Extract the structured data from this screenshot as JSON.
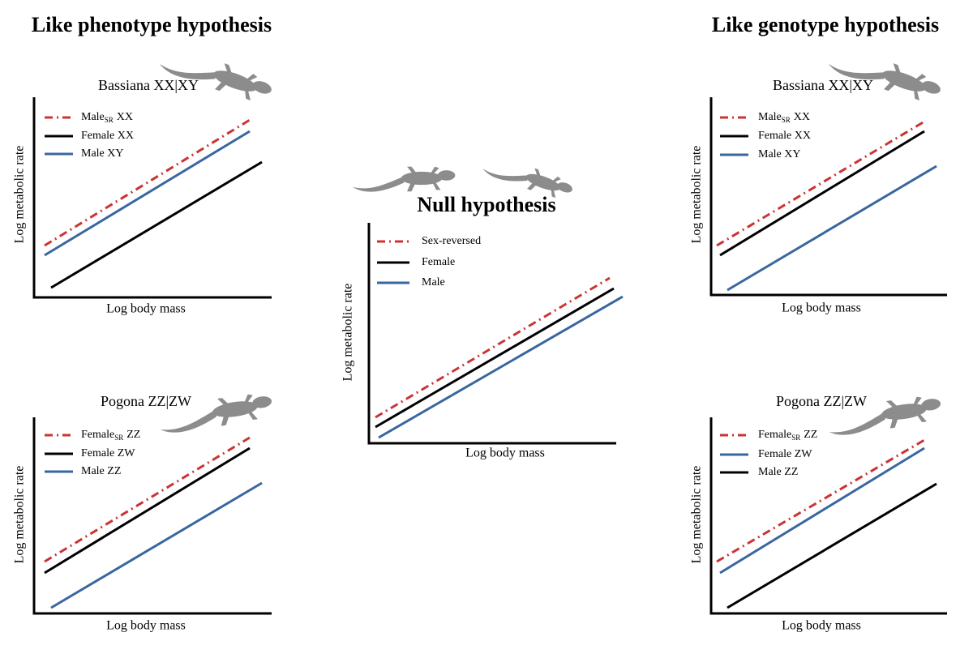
{
  "headings": {
    "left": "Like phenotype hypothesis",
    "right": "Like genotype hypothesis"
  },
  "panels": [
    {
      "title": "Bassiana XX|XY",
      "x_label": "Log body mass",
      "y_label": "Log metabolic rate",
      "legend": [
        {
          "text": "Male",
          "sub": "SR",
          "after": "XX"
        },
        {
          "text": "Female XX"
        },
        {
          "text": "Male XY"
        }
      ]
    },
    {
      "title": "Pogona ZZ|ZW",
      "x_label": "Log body mass",
      "y_label": "Log metabolic rate",
      "legend": [
        {
          "text": "Female",
          "sub": "SR",
          "after": "ZZ"
        },
        {
          "text": "Female ZW"
        },
        {
          "text": "Male ZZ"
        }
      ]
    },
    {
      "title": "Null hypothesis",
      "x_label": "Log body mass",
      "y_label": "Log metabolic rate",
      "legend": [
        {
          "text": "Sex-reversed"
        },
        {
          "text": "Female"
        },
        {
          "text": "Male"
        }
      ]
    },
    {
      "title": "Bassiana XX|XY",
      "x_label": "Log body mass",
      "y_label": "Log metabolic rate",
      "legend": [
        {
          "text": "Male",
          "sub": "SR",
          "after": "XX"
        },
        {
          "text": "Female XX"
        },
        {
          "text": "Male XY"
        }
      ]
    },
    {
      "title": "Pogona ZZ|ZW",
      "x_label": "Log body mass",
      "y_label": "Log metabolic rate",
      "legend": [
        {
          "text": "Female",
          "sub": "SR",
          "after": "ZZ"
        },
        {
          "text": "Female ZW"
        },
        {
          "text": "Male ZZ"
        }
      ]
    }
  ]
}
